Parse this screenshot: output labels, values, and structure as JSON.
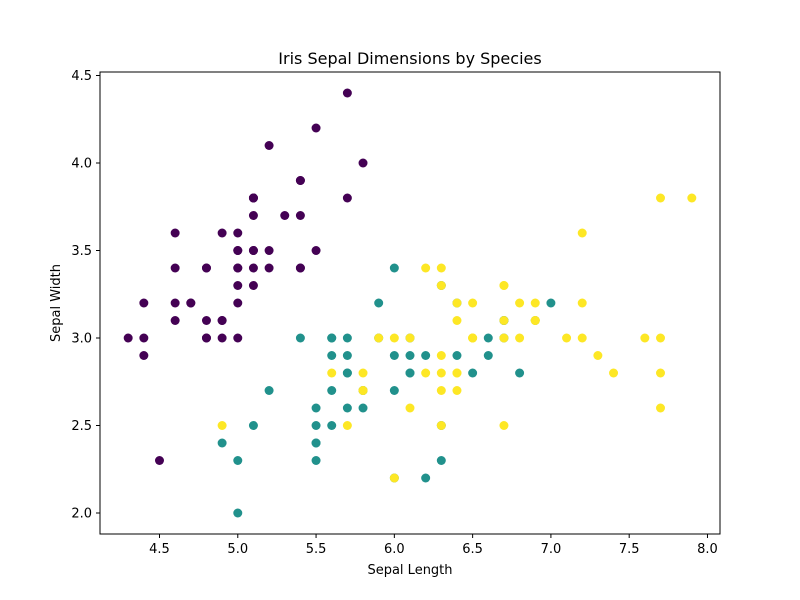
{
  "chart_data": {
    "type": "scatter",
    "title": "Iris Sepal Dimensions by Species",
    "xlabel": "Sepal Length",
    "ylabel": "Sepal Width",
    "xlim": [
      4.12,
      8.08
    ],
    "ylim": [
      1.88,
      4.52
    ],
    "xticks": [
      "4.5",
      "5.0",
      "5.5",
      "6.0",
      "6.5",
      "7.0",
      "7.5",
      "8.0"
    ],
    "yticks": [
      "2.0",
      "2.5",
      "3.0",
      "3.5",
      "4.0",
      "4.5"
    ],
    "grid": false,
    "legend": false,
    "colors": [
      "#440154",
      "#21918c",
      "#fde725"
    ],
    "series": [
      {
        "color": "#440154",
        "points": [
          [
            5.1,
            3.5
          ],
          [
            4.9,
            3.0
          ],
          [
            4.7,
            3.2
          ],
          [
            4.6,
            3.1
          ],
          [
            5.0,
            3.6
          ],
          [
            5.4,
            3.9
          ],
          [
            4.6,
            3.4
          ],
          [
            5.0,
            3.4
          ],
          [
            4.4,
            2.9
          ],
          [
            4.9,
            3.1
          ],
          [
            5.4,
            3.7
          ],
          [
            4.8,
            3.4
          ],
          [
            4.8,
            3.0
          ],
          [
            4.3,
            3.0
          ],
          [
            5.8,
            4.0
          ],
          [
            5.7,
            4.4
          ],
          [
            5.4,
            3.9
          ],
          [
            5.1,
            3.5
          ],
          [
            5.7,
            3.8
          ],
          [
            5.1,
            3.8
          ],
          [
            5.4,
            3.4
          ],
          [
            5.1,
            3.7
          ],
          [
            4.6,
            3.6
          ],
          [
            5.1,
            3.3
          ],
          [
            4.8,
            3.4
          ],
          [
            5.0,
            3.0
          ],
          [
            5.0,
            3.4
          ],
          [
            5.2,
            3.5
          ],
          [
            5.2,
            3.4
          ],
          [
            4.7,
            3.2
          ],
          [
            4.8,
            3.1
          ],
          [
            5.4,
            3.4
          ],
          [
            5.2,
            4.1
          ],
          [
            5.5,
            4.2
          ],
          [
            4.9,
            3.1
          ],
          [
            5.0,
            3.2
          ],
          [
            5.5,
            3.5
          ],
          [
            4.9,
            3.6
          ],
          [
            4.4,
            3.0
          ],
          [
            5.1,
            3.4
          ],
          [
            5.0,
            3.5
          ],
          [
            4.5,
            2.3
          ],
          [
            4.4,
            3.2
          ],
          [
            5.0,
            3.5
          ],
          [
            5.1,
            3.8
          ],
          [
            4.8,
            3.0
          ],
          [
            5.1,
            3.8
          ],
          [
            4.6,
            3.2
          ],
          [
            5.3,
            3.7
          ],
          [
            5.0,
            3.3
          ]
        ]
      },
      {
        "color": "#21918c",
        "points": [
          [
            7.0,
            3.2
          ],
          [
            6.4,
            3.2
          ],
          [
            6.9,
            3.1
          ],
          [
            5.5,
            2.3
          ],
          [
            6.5,
            2.8
          ],
          [
            5.7,
            2.8
          ],
          [
            6.3,
            3.3
          ],
          [
            4.9,
            2.4
          ],
          [
            6.6,
            2.9
          ],
          [
            5.2,
            2.7
          ],
          [
            5.0,
            2.0
          ],
          [
            5.9,
            3.0
          ],
          [
            6.0,
            2.2
          ],
          [
            6.1,
            2.9
          ],
          [
            5.6,
            2.9
          ],
          [
            6.7,
            3.1
          ],
          [
            5.6,
            3.0
          ],
          [
            5.8,
            2.7
          ],
          [
            6.2,
            2.2
          ],
          [
            5.6,
            2.5
          ],
          [
            5.9,
            3.2
          ],
          [
            6.1,
            2.8
          ],
          [
            6.3,
            2.5
          ],
          [
            6.1,
            2.8
          ],
          [
            6.4,
            2.9
          ],
          [
            6.6,
            3.0
          ],
          [
            6.8,
            2.8
          ],
          [
            6.7,
            3.0
          ],
          [
            6.0,
            2.9
          ],
          [
            5.7,
            2.6
          ],
          [
            5.5,
            2.4
          ],
          [
            5.5,
            2.4
          ],
          [
            5.8,
            2.7
          ],
          [
            6.0,
            2.7
          ],
          [
            5.4,
            3.0
          ],
          [
            6.0,
            3.4
          ],
          [
            6.7,
            3.1
          ],
          [
            6.3,
            2.3
          ],
          [
            5.6,
            3.0
          ],
          [
            5.5,
            2.5
          ],
          [
            5.5,
            2.6
          ],
          [
            6.1,
            3.0
          ],
          [
            5.8,
            2.6
          ],
          [
            5.0,
            2.3
          ],
          [
            5.6,
            2.7
          ],
          [
            5.7,
            3.0
          ],
          [
            5.7,
            2.9
          ],
          [
            6.2,
            2.9
          ],
          [
            5.1,
            2.5
          ],
          [
            5.7,
            2.8
          ]
        ]
      },
      {
        "color": "#fde725",
        "points": [
          [
            6.3,
            3.3
          ],
          [
            5.8,
            2.7
          ],
          [
            7.1,
            3.0
          ],
          [
            6.3,
            2.9
          ],
          [
            6.5,
            3.0
          ],
          [
            7.6,
            3.0
          ],
          [
            4.9,
            2.5
          ],
          [
            7.3,
            2.9
          ],
          [
            6.7,
            2.5
          ],
          [
            7.2,
            3.6
          ],
          [
            6.5,
            3.2
          ],
          [
            6.4,
            2.7
          ],
          [
            6.8,
            3.0
          ],
          [
            5.7,
            2.5
          ],
          [
            5.8,
            2.8
          ],
          [
            6.4,
            3.2
          ],
          [
            6.5,
            3.0
          ],
          [
            7.7,
            3.8
          ],
          [
            7.7,
            2.6
          ],
          [
            6.0,
            2.2
          ],
          [
            6.9,
            3.2
          ],
          [
            5.6,
            2.8
          ],
          [
            7.7,
            2.8
          ],
          [
            6.3,
            2.7
          ],
          [
            6.7,
            3.3
          ],
          [
            7.2,
            3.2
          ],
          [
            6.2,
            2.8
          ],
          [
            6.1,
            3.0
          ],
          [
            6.4,
            2.8
          ],
          [
            7.2,
            3.0
          ],
          [
            7.4,
            2.8
          ],
          [
            7.9,
            3.8
          ],
          [
            6.4,
            2.8
          ],
          [
            6.3,
            2.8
          ],
          [
            6.1,
            2.6
          ],
          [
            7.7,
            3.0
          ],
          [
            6.3,
            3.4
          ],
          [
            6.4,
            3.1
          ],
          [
            6.0,
            3.0
          ],
          [
            6.9,
            3.1
          ],
          [
            6.7,
            3.1
          ],
          [
            6.9,
            3.1
          ],
          [
            5.8,
            2.7
          ],
          [
            6.8,
            3.2
          ],
          [
            6.7,
            3.3
          ],
          [
            6.7,
            3.0
          ],
          [
            6.3,
            2.5
          ],
          [
            6.5,
            3.0
          ],
          [
            6.2,
            3.4
          ],
          [
            5.9,
            3.0
          ]
        ]
      }
    ]
  }
}
